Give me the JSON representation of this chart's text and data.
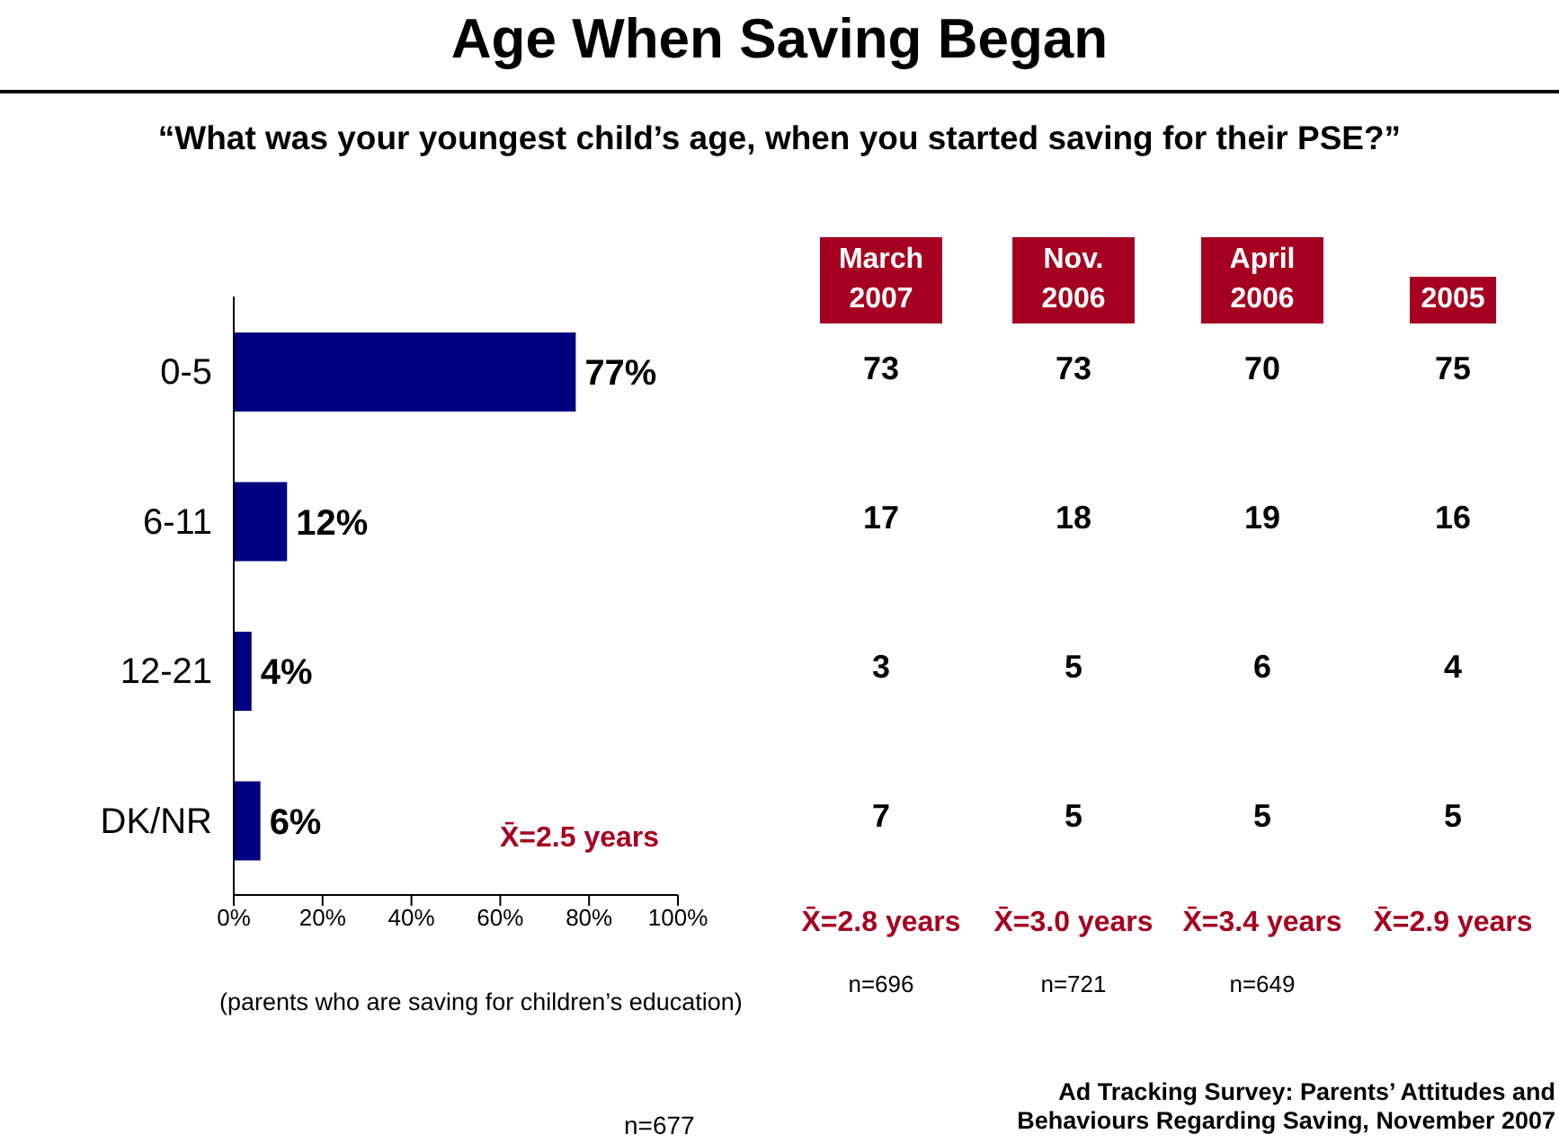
{
  "chart_data": {
    "type": "bar",
    "orientation": "horizontal",
    "title": "Age When Saving Began",
    "subtitle": "“What was your youngest child’s age, when you started saving for their PSE?”",
    "categories": [
      "0-5",
      "6-11",
      "12-21",
      "DK/NR"
    ],
    "values": [
      77,
      12,
      4,
      6
    ],
    "color": "#000080",
    "value_labels": [
      "77%",
      "12%",
      "4%",
      "6%"
    ],
    "xlim": [
      0,
      100
    ],
    "xticks": [
      {
        "value": 0,
        "label": "0%"
      },
      {
        "value": 20,
        "label": "20%"
      },
      {
        "value": 40,
        "label": "40%"
      },
      {
        "value": 60,
        "label": "60%"
      },
      {
        "value": 80,
        "label": "80%"
      },
      {
        "value": 100,
        "label": "100%"
      }
    ],
    "grid": false,
    "legend": false,
    "annotations": [
      "March 2007",
      "Nov. 2006",
      "April 2006",
      "2005",
      "73",
      "73",
      "70",
      "75",
      "17",
      "18",
      "19",
      "16",
      "3",
      "5",
      "6",
      "4",
      "7",
      "5",
      "5",
      "5",
      "X̄=2.8 years",
      "X̄=3.0 years",
      "X̄=3.4 years",
      "X̄=2.9 years",
      "n=696",
      "n=721",
      "n=649",
      "X̄=2.5 years",
      "(parents who are saving for children’s education)",
      "n=677",
      "Ad Tracking Survey: Parents’ Attitudes and Behaviours Regarding Saving, November 2007"
    ]
  }
}
